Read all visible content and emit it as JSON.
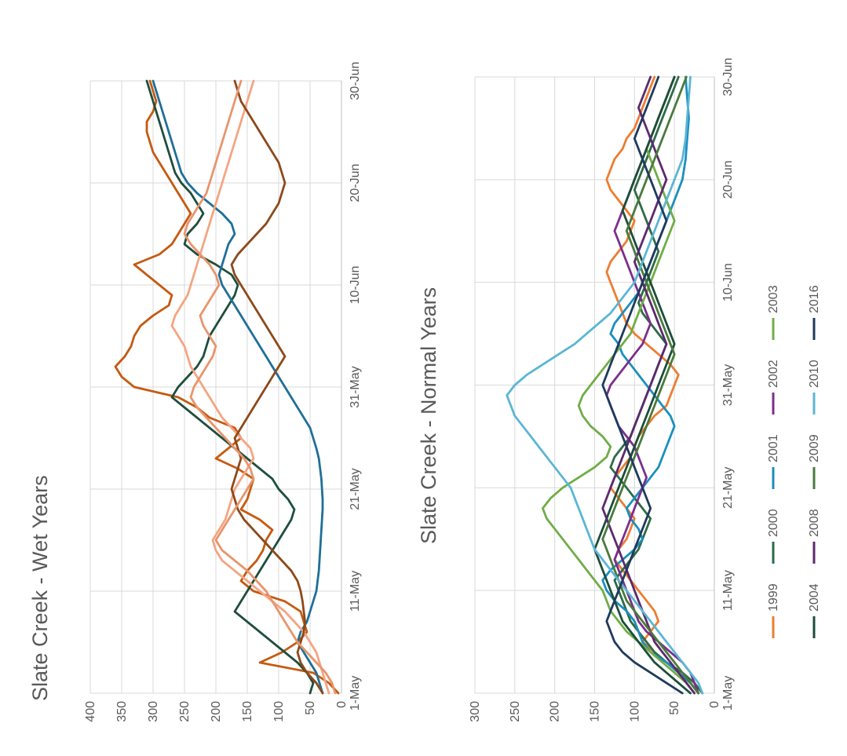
{
  "chart_data": [
    {
      "type": "line",
      "title": "Slate Creek - Wet Years",
      "xlabel": "",
      "ylabel": "",
      "x_ticks": [
        "1-May",
        "11-May",
        "21-May",
        "31-May",
        "10-Jun",
        "20-Jun",
        "30-Jun"
      ],
      "y_ticks": [
        0,
        50,
        100,
        150,
        200,
        250,
        300,
        350,
        400
      ],
      "ylim": [
        0,
        400
      ],
      "x_range": [
        0,
        60
      ],
      "orientation": "rotated-90-ccw",
      "grid": true,
      "legend": "none",
      "series": [
        {
          "color": "#c55a11",
          "values": [
            5,
            20,
            45,
            130,
            95,
            70,
            55,
            60,
            65,
            90,
            140,
            160,
            150,
            135,
            125,
            120,
            110,
            130,
            160,
            150,
            145,
            140,
            165,
            200,
            180,
            160,
            170,
            210,
            230,
            260,
            330,
            350,
            360,
            345,
            335,
            330,
            320,
            300,
            275,
            270,
            290,
            310,
            330,
            290,
            270,
            260,
            250,
            240,
            250,
            260,
            270,
            280,
            290,
            300,
            305,
            310,
            310,
            300,
            295,
            300,
            305
          ]
        },
        {
          "color": "#1f4e3d",
          "values": [
            50,
            45,
            55,
            70,
            90,
            110,
            130,
            150,
            170,
            160,
            150,
            140,
            130,
            120,
            110,
            100,
            90,
            80,
            75,
            85,
            100,
            110,
            130,
            150,
            170,
            190,
            210,
            230,
            250,
            270,
            260,
            245,
            230,
            220,
            215,
            210,
            200,
            190,
            180,
            170,
            165,
            175,
            200,
            230,
            250,
            245,
            230,
            220,
            230,
            240,
            255,
            265,
            270,
            275,
            280,
            285,
            290,
            295,
            300,
            305,
            310
          ]
        },
        {
          "color": "#1f6f99",
          "values": [
            30,
            35,
            40,
            50,
            60,
            70,
            65,
            55,
            50,
            45,
            40,
            38,
            36,
            35,
            34,
            33,
            32,
            31,
            30,
            30,
            31,
            32,
            34,
            36,
            40,
            45,
            50,
            60,
            70,
            80,
            90,
            100,
            110,
            120,
            130,
            140,
            150,
            160,
            170,
            180,
            190,
            195,
            190,
            185,
            180,
            170,
            175,
            190,
            210,
            230,
            245,
            255,
            260,
            265,
            270,
            275,
            280,
            285,
            290,
            295,
            300
          ]
        },
        {
          "color": "#f4a582",
          "values": [
            20,
            25,
            30,
            35,
            40,
            50,
            60,
            75,
            90,
            110,
            130,
            150,
            170,
            190,
            200,
            205,
            195,
            185,
            180,
            175,
            170,
            160,
            150,
            140,
            145,
            160,
            175,
            190,
            200,
            210,
            220,
            230,
            240,
            245,
            250,
            260,
            270,
            265,
            255,
            245,
            240,
            235,
            230,
            225,
            220,
            215,
            210,
            205,
            200,
            195,
            190,
            185,
            180,
            175,
            170,
            165,
            160,
            155,
            150,
            145,
            140
          ]
        },
        {
          "color": "#8c4a1a",
          "values": [
            30,
            40,
            55,
            65,
            70,
            65,
            60,
            58,
            60,
            62,
            65,
            70,
            80,
            95,
            110,
            125,
            140,
            155,
            165,
            170,
            175,
            170,
            165,
            160,
            165,
            170,
            160,
            150,
            140,
            130,
            120,
            110,
            100,
            90,
            100,
            110,
            120,
            130,
            140,
            150,
            160,
            170,
            175,
            165,
            150,
            135,
            120,
            110,
            100,
            95,
            90,
            95,
            100,
            110,
            120,
            130,
            140,
            150,
            160,
            165,
            170
          ]
        },
        {
          "color": "#e8956d",
          "values": [
            10,
            15,
            25,
            40,
            55,
            70,
            80,
            90,
            100,
            110,
            120,
            135,
            150,
            170,
            190,
            200,
            190,
            180,
            170,
            160,
            150,
            140,
            145,
            155,
            170,
            185,
            200,
            215,
            230,
            240,
            235,
            225,
            215,
            205,
            200,
            210,
            220,
            225,
            215,
            205,
            195,
            200,
            210,
            225,
            240,
            250,
            245,
            235,
            225,
            215,
            210,
            205,
            200,
            195,
            190,
            185,
            180,
            175,
            170,
            165,
            160
          ]
        }
      ]
    },
    {
      "type": "line",
      "title": "Slate Creek - Normal Years",
      "xlabel": "",
      "ylabel": "",
      "x_ticks": [
        "1-May",
        "11-May",
        "21-May",
        "31-May",
        "10-Jun",
        "20-Jun",
        "30-Jun"
      ],
      "y_ticks": [
        0,
        50,
        100,
        150,
        200,
        250,
        300
      ],
      "ylim": [
        0,
        300
      ],
      "x_range": [
        0,
        60
      ],
      "orientation": "rotated-90-ccw",
      "grid": true,
      "legend": "bottom",
      "series": [
        {
          "name": "1999",
          "color": "#ed7d31",
          "values": [
            20,
            30,
            45,
            60,
            75,
            90,
            80,
            70,
            75,
            85,
            95,
            105,
            115,
            125,
            120,
            110,
            105,
            100,
            110,
            120,
            130,
            125,
            115,
            105,
            100,
            95,
            85,
            75,
            60,
            55,
            50,
            45,
            55,
            70,
            85,
            100,
            110,
            115,
            120,
            125,
            130,
            135,
            130,
            120,
            110,
            105,
            100,
            110,
            120,
            130,
            135,
            130,
            125,
            115,
            110,
            100,
            95,
            90,
            85,
            80,
            75
          ]
        },
        {
          "name": "2000",
          "color": "#2e6b47",
          "values": [
            15,
            25,
            40,
            60,
            75,
            85,
            95,
            105,
            110,
            115,
            120,
            125,
            115,
            105,
            95,
            90,
            85,
            80,
            90,
            100,
            110,
            120,
            130,
            125,
            115,
            105,
            100,
            95,
            90,
            85,
            80,
            75,
            70,
            65,
            60,
            70,
            80,
            90,
            95,
            90,
            85,
            80,
            75,
            70,
            75,
            80,
            85,
            90,
            95,
            100,
            95,
            90,
            85,
            80,
            75,
            70,
            65,
            60,
            55,
            50,
            45
          ]
        },
        {
          "name": "2001",
          "color": "#1b8fbf",
          "values": [
            20,
            30,
            45,
            60,
            80,
            90,
            95,
            100,
            110,
            125,
            135,
            140,
            130,
            115,
            100,
            90,
            95,
            105,
            110,
            100,
            90,
            80,
            70,
            65,
            60,
            55,
            50,
            55,
            65,
            75,
            85,
            95,
            105,
            115,
            120,
            130,
            125,
            115,
            105,
            95,
            90,
            85,
            80,
            75,
            70,
            65,
            60,
            55,
            50,
            45,
            40,
            38,
            36,
            35,
            34,
            33,
            32,
            33,
            34,
            35,
            36
          ]
        },
        {
          "name": "2002",
          "color": "#7b2f8c",
          "values": [
            20,
            25,
            30,
            40,
            55,
            70,
            85,
            95,
            100,
            105,
            110,
            115,
            120,
            125,
            120,
            115,
            110,
            105,
            100,
            95,
            90,
            85,
            90,
            95,
            100,
            110,
            120,
            125,
            130,
            135,
            130,
            120,
            110,
            100,
            90,
            85,
            80,
            85,
            90,
            95,
            100,
            105,
            110,
            115,
            120,
            125,
            120,
            115,
            110,
            105,
            100,
            95,
            90,
            85,
            80,
            75,
            70,
            65,
            60,
            55,
            50
          ]
        },
        {
          "name": "2003",
          "color": "#70ad47",
          "values": [
            25,
            35,
            50,
            65,
            80,
            95,
            110,
            120,
            130,
            135,
            140,
            150,
            160,
            170,
            180,
            190,
            200,
            210,
            215,
            205,
            190,
            170,
            150,
            135,
            130,
            140,
            155,
            165,
            170,
            165,
            155,
            145,
            135,
            125,
            115,
            105,
            100,
            95,
            90,
            85,
            80,
            75,
            70,
            65,
            60,
            55,
            50,
            55,
            60,
            65,
            70,
            75,
            80,
            85,
            80,
            75,
            70,
            65,
            60,
            55,
            50
          ]
        },
        {
          "name": "2004",
          "color": "#1e4d3a",
          "values": [
            30,
            45,
            60,
            75,
            85,
            95,
            105,
            115,
            120,
            125,
            130,
            135,
            140,
            145,
            150,
            145,
            140,
            135,
            130,
            125,
            120,
            115,
            110,
            105,
            100,
            95,
            90,
            85,
            80,
            75,
            70,
            65,
            60,
            55,
            50,
            55,
            60,
            65,
            70,
            75,
            80,
            85,
            90,
            95,
            100,
            105,
            110,
            115,
            110,
            105,
            100,
            95,
            90,
            85,
            80,
            75,
            70,
            65,
            60,
            55,
            50
          ]
        },
        {
          "name": "2008",
          "color": "#5b2a6e",
          "values": [
            25,
            35,
            45,
            55,
            65,
            75,
            80,
            85,
            90,
            95,
            100,
            105,
            110,
            115,
            120,
            125,
            130,
            135,
            140,
            135,
            130,
            125,
            120,
            115,
            110,
            105,
            100,
            95,
            90,
            85,
            80,
            75,
            70,
            65,
            60,
            65,
            70,
            75,
            80,
            85,
            90,
            95,
            100,
            95,
            90,
            85,
            80,
            75,
            70,
            65,
            60,
            65,
            70,
            75,
            80,
            85,
            90,
            95,
            90,
            85,
            80
          ]
        },
        {
          "name": "2009",
          "color": "#4a7a3d",
          "values": [
            20,
            30,
            40,
            50,
            60,
            70,
            80,
            90,
            100,
            110,
            115,
            120,
            125,
            130,
            135,
            140,
            135,
            130,
            125,
            120,
            115,
            110,
            105,
            100,
            95,
            90,
            85,
            80,
            75,
            70,
            65,
            60,
            55,
            50,
            55,
            60,
            65,
            70,
            75,
            80,
            85,
            90,
            95,
            100,
            105,
            110,
            105,
            100,
            95,
            90,
            85,
            80,
            75,
            70,
            65,
            60,
            55,
            50,
            45,
            40,
            35
          ]
        },
        {
          "name": "2010",
          "color": "#5bb6d6",
          "values": [
            15,
            20,
            30,
            40,
            50,
            60,
            70,
            80,
            90,
            100,
            110,
            120,
            130,
            140,
            150,
            155,
            160,
            165,
            170,
            175,
            180,
            190,
            200,
            210,
            220,
            230,
            240,
            250,
            255,
            260,
            250,
            235,
            215,
            195,
            175,
            160,
            145,
            130,
            120,
            110,
            100,
            95,
            90,
            85,
            80,
            75,
            70,
            65,
            60,
            55,
            50,
            45,
            40,
            38,
            36,
            35,
            34,
            33,
            32,
            31,
            30
          ]
        },
        {
          "name": "2016",
          "color": "#1f3a5c",
          "values": [
            40,
            60,
            80,
            100,
            115,
            125,
            130,
            135,
            130,
            125,
            120,
            115,
            110,
            105,
            100,
            95,
            90,
            85,
            80,
            85,
            90,
            95,
            100,
            105,
            110,
            115,
            120,
            125,
            130,
            135,
            140,
            135,
            130,
            125,
            120,
            115,
            110,
            105,
            100,
            95,
            90,
            85,
            80,
            75,
            70,
            65,
            60,
            65,
            70,
            75,
            80,
            85,
            90,
            95,
            100,
            95,
            90,
            85,
            80,
            75,
            70
          ]
        }
      ]
    }
  ]
}
